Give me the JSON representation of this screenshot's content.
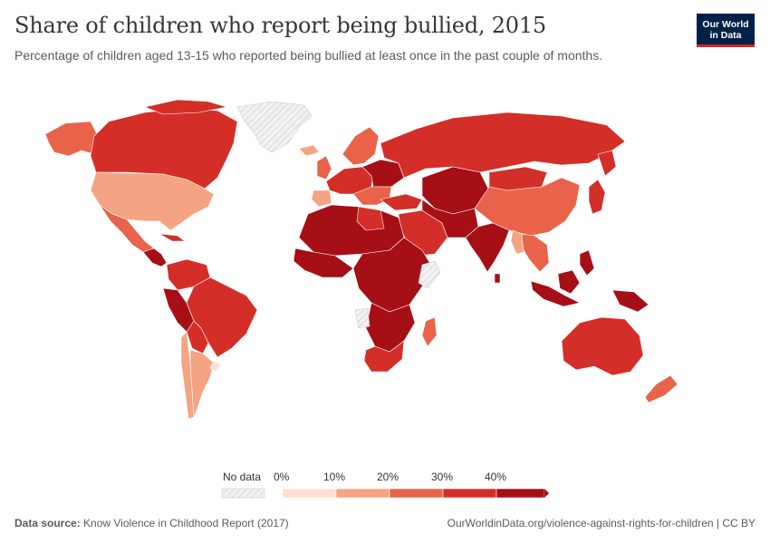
{
  "header": {
    "title": "Share of children who report being bullied, 2015",
    "subtitle": "Percentage of children aged 13-15 who reported being bullied at least once in the past couple of months."
  },
  "logo": {
    "line1": "Our World",
    "line2": "in Data"
  },
  "legend": {
    "no_data_label": "No data",
    "ticks": [
      "0%",
      "10%",
      "20%",
      "30%",
      "40%"
    ],
    "colors": [
      "#fde0d2",
      "#f4a482",
      "#e8634a",
      "#d42e28",
      "#a50f15"
    ],
    "no_data_color": "#eeeeee"
  },
  "footer": {
    "source_label": "Data source:",
    "source_text": "Know Violence in Childhood Report (2017)",
    "url_text": "OurWorldinData.org/violence-against-rights-for-children | CC BY"
  },
  "map_colors": {
    "c0": "#fde0d2",
    "c1": "#f4a482",
    "c2": "#e8634a",
    "c3": "#d42e28",
    "c4": "#a50f15",
    "nodata": "#eeeeee"
  }
}
